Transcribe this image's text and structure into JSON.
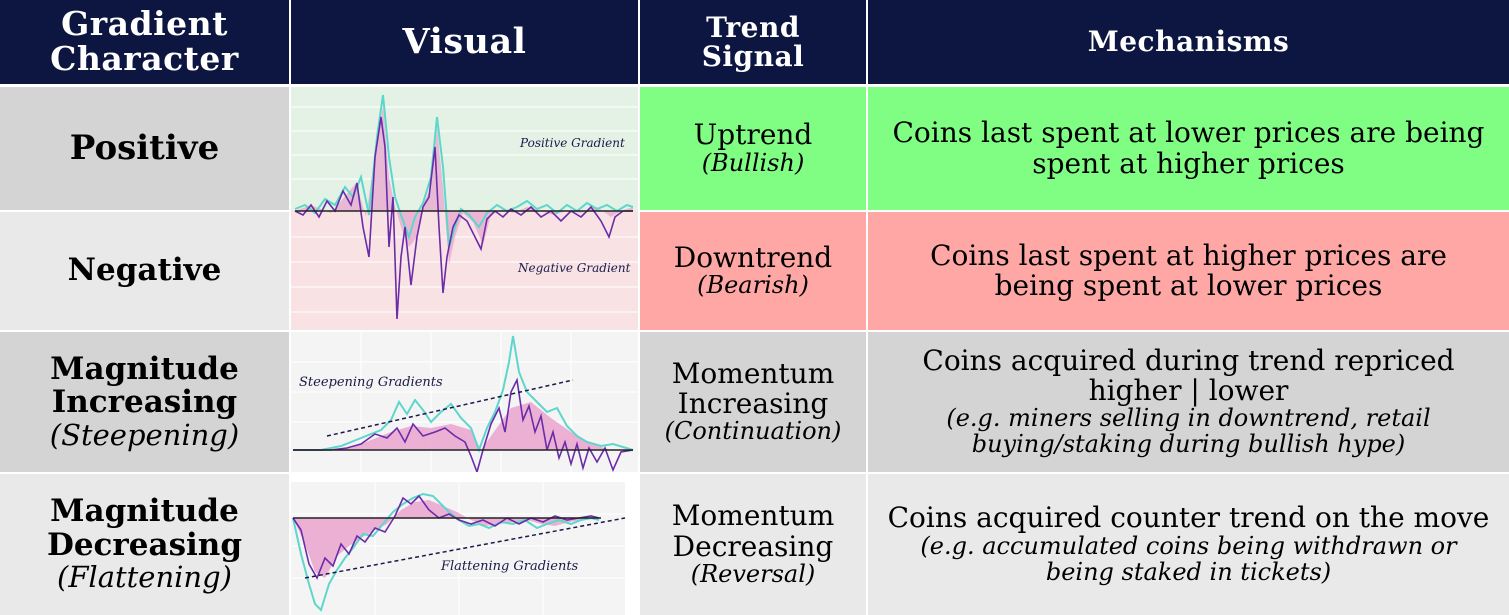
{
  "headers": {
    "character_line1": "Gradient",
    "character_line2": "Character",
    "visual": "Visual",
    "trend_line1": "Trend",
    "trend_line2": "Signal",
    "mechanisms": "Mechanisms"
  },
  "rows": [
    {
      "character_line1": "Positive",
      "trend_main": "Uptrend",
      "trend_sub": "(Bullish)",
      "mechanism_line1": "Coins last spent at lower prices are being",
      "mechanism_line2": "spent at higher prices",
      "chart_label_top": "Positive Gradient"
    },
    {
      "character_line1": "Negative",
      "trend_main": "Downtrend",
      "trend_sub": "(Bearish)",
      "mechanism_line1": "Coins last spent at higher prices are",
      "mechanism_line2": "being spent at lower prices",
      "chart_label_bottom": "Negative Gradient"
    },
    {
      "character_line1": "Magnitude",
      "character_line2": "Increasing",
      "character_sub": "(Steepening)",
      "trend_main_line1": "Momentum",
      "trend_main_line2": "Increasing",
      "trend_sub": "(Continuation)",
      "mechanism_line1": "Coins acquired during trend repriced",
      "mechanism_line2": "higher | lower",
      "mechanism_example1": "(e.g. miners selling in downtrend, retail",
      "mechanism_example2": "buying/staking during bullish hype)",
      "chart_label": "Steepening Gradients"
    },
    {
      "character_line1": "Magnitude",
      "character_line2": "Decreasing",
      "character_sub": "(Flattening)",
      "trend_main_line1": "Momentum",
      "trend_main_line2": "Decreasing",
      "trend_sub": "(Reversal)",
      "mechanism_line1": "Coins acquired counter trend on the move",
      "mechanism_example1": "(e.g. accumulated coins being withdrawn or",
      "mechanism_example2": "being staked in tickets)",
      "chart_label": "Flattening Gradients"
    }
  ],
  "colors": {
    "header_bg": "#0c1640",
    "positive_bg": "#80fe83",
    "negative_bg": "#fea7a5",
    "row_gray_dark": "#d4d4d4",
    "row_gray_light": "#e9e9e9",
    "line_cyan": "#5ed6cc",
    "line_purple": "#6a2ca8",
    "fill_pink": "#e89ac8"
  }
}
